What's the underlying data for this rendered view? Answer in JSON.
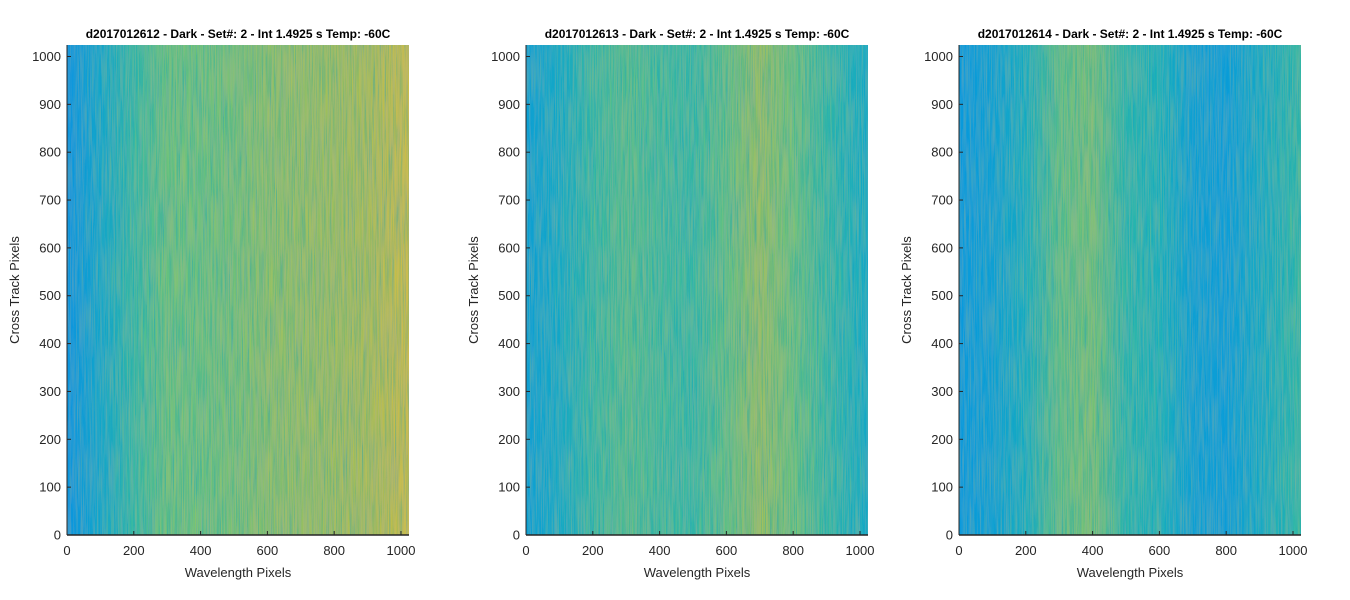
{
  "chart_data": [
    {
      "type": "heatmap",
      "title": "d2017012612 - Dark - Set#: 2 - Int 1.4925 s Temp: -60C",
      "xlabel": "Wavelength Pixels",
      "ylabel": "Cross Track Pixels",
      "xlim": [
        0,
        1024
      ],
      "ylim": [
        0,
        1024
      ],
      "xticks": [
        0,
        200,
        400,
        600,
        800,
        1000
      ],
      "yticks": [
        0,
        100,
        200,
        300,
        400,
        500,
        600,
        700,
        800,
        900,
        1000
      ],
      "colormap": "parula",
      "intensity_profile": {
        "x": [
          0,
          100,
          200,
          300,
          400,
          500,
          600,
          700,
          800,
          900,
          1000,
          1024
        ],
        "level": [
          0.28,
          0.38,
          0.5,
          0.6,
          0.6,
          0.62,
          0.66,
          0.68,
          0.7,
          0.72,
          0.78,
          0.8
        ]
      }
    },
    {
      "type": "heatmap",
      "title": "d2017012613 - Dark - Set#: 2 - Int 1.4925 s Temp: -60C",
      "xlabel": "Wavelength Pixels",
      "ylabel": "Cross Track Pixels",
      "xlim": [
        0,
        1024
      ],
      "ylim": [
        0,
        1024
      ],
      "xticks": [
        0,
        200,
        400,
        600,
        800,
        1000
      ],
      "yticks": [
        0,
        100,
        200,
        300,
        400,
        500,
        600,
        700,
        800,
        900,
        1000
      ],
      "colormap": "parula",
      "intensity_profile": {
        "x": [
          0,
          100,
          200,
          300,
          400,
          500,
          600,
          700,
          800,
          900,
          1000,
          1024
        ],
        "level": [
          0.34,
          0.4,
          0.5,
          0.56,
          0.52,
          0.5,
          0.58,
          0.68,
          0.6,
          0.5,
          0.42,
          0.4
        ]
      }
    },
    {
      "type": "heatmap",
      "title": "d2017012614 - Dark - Set#: 2 - Int 1.4925 s Temp: -60C",
      "xlabel": "Wavelength Pixels",
      "ylabel": "Cross Track Pixels",
      "xlim": [
        0,
        1024
      ],
      "ylim": [
        0,
        1024
      ],
      "xticks": [
        0,
        200,
        400,
        600,
        800,
        1000
      ],
      "yticks": [
        0,
        100,
        200,
        300,
        400,
        500,
        600,
        700,
        800,
        900,
        1000
      ],
      "colormap": "parula",
      "intensity_profile": {
        "x": [
          0,
          100,
          200,
          300,
          400,
          500,
          600,
          700,
          800,
          900,
          1000,
          1024
        ],
        "level": [
          0.3,
          0.34,
          0.42,
          0.58,
          0.62,
          0.48,
          0.44,
          0.34,
          0.32,
          0.4,
          0.48,
          0.5
        ]
      }
    }
  ]
}
